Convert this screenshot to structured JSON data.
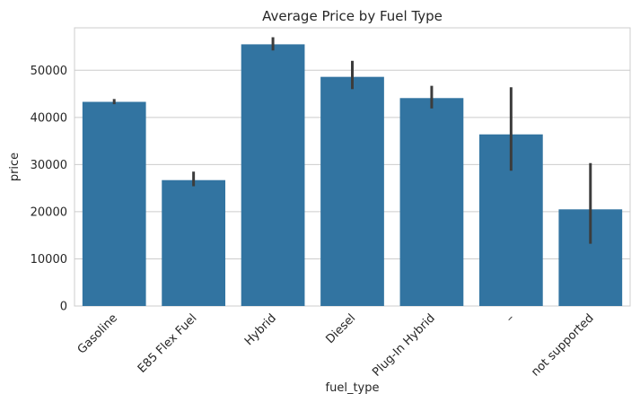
{
  "chart_data": {
    "type": "bar",
    "title": "Average Price by Fuel Type",
    "xlabel": "fuel_type",
    "ylabel": "price",
    "categories": [
      "Gasoline",
      "E85 Flex Fuel",
      "Hybrid",
      "Diesel",
      "Plug-In Hybrid",
      "–",
      "not supported"
    ],
    "values": [
      43300,
      26700,
      55500,
      48600,
      44100,
      36400,
      20500
    ],
    "error_low": [
      42800,
      25400,
      54200,
      46000,
      41900,
      28700,
      13200
    ],
    "error_high": [
      43900,
      28500,
      57000,
      52000,
      46700,
      46400,
      30300
    ],
    "ylim": [
      0,
      59000
    ],
    "yticks": [
      0,
      10000,
      20000,
      30000,
      40000,
      50000
    ],
    "ytick_labels": [
      "0",
      "10000",
      "20000",
      "30000",
      "40000",
      "50000"
    ],
    "grid": true,
    "bar_color": "#3274a1",
    "error_color": "#3c3c3c",
    "grid_color": "#cccccc"
  }
}
